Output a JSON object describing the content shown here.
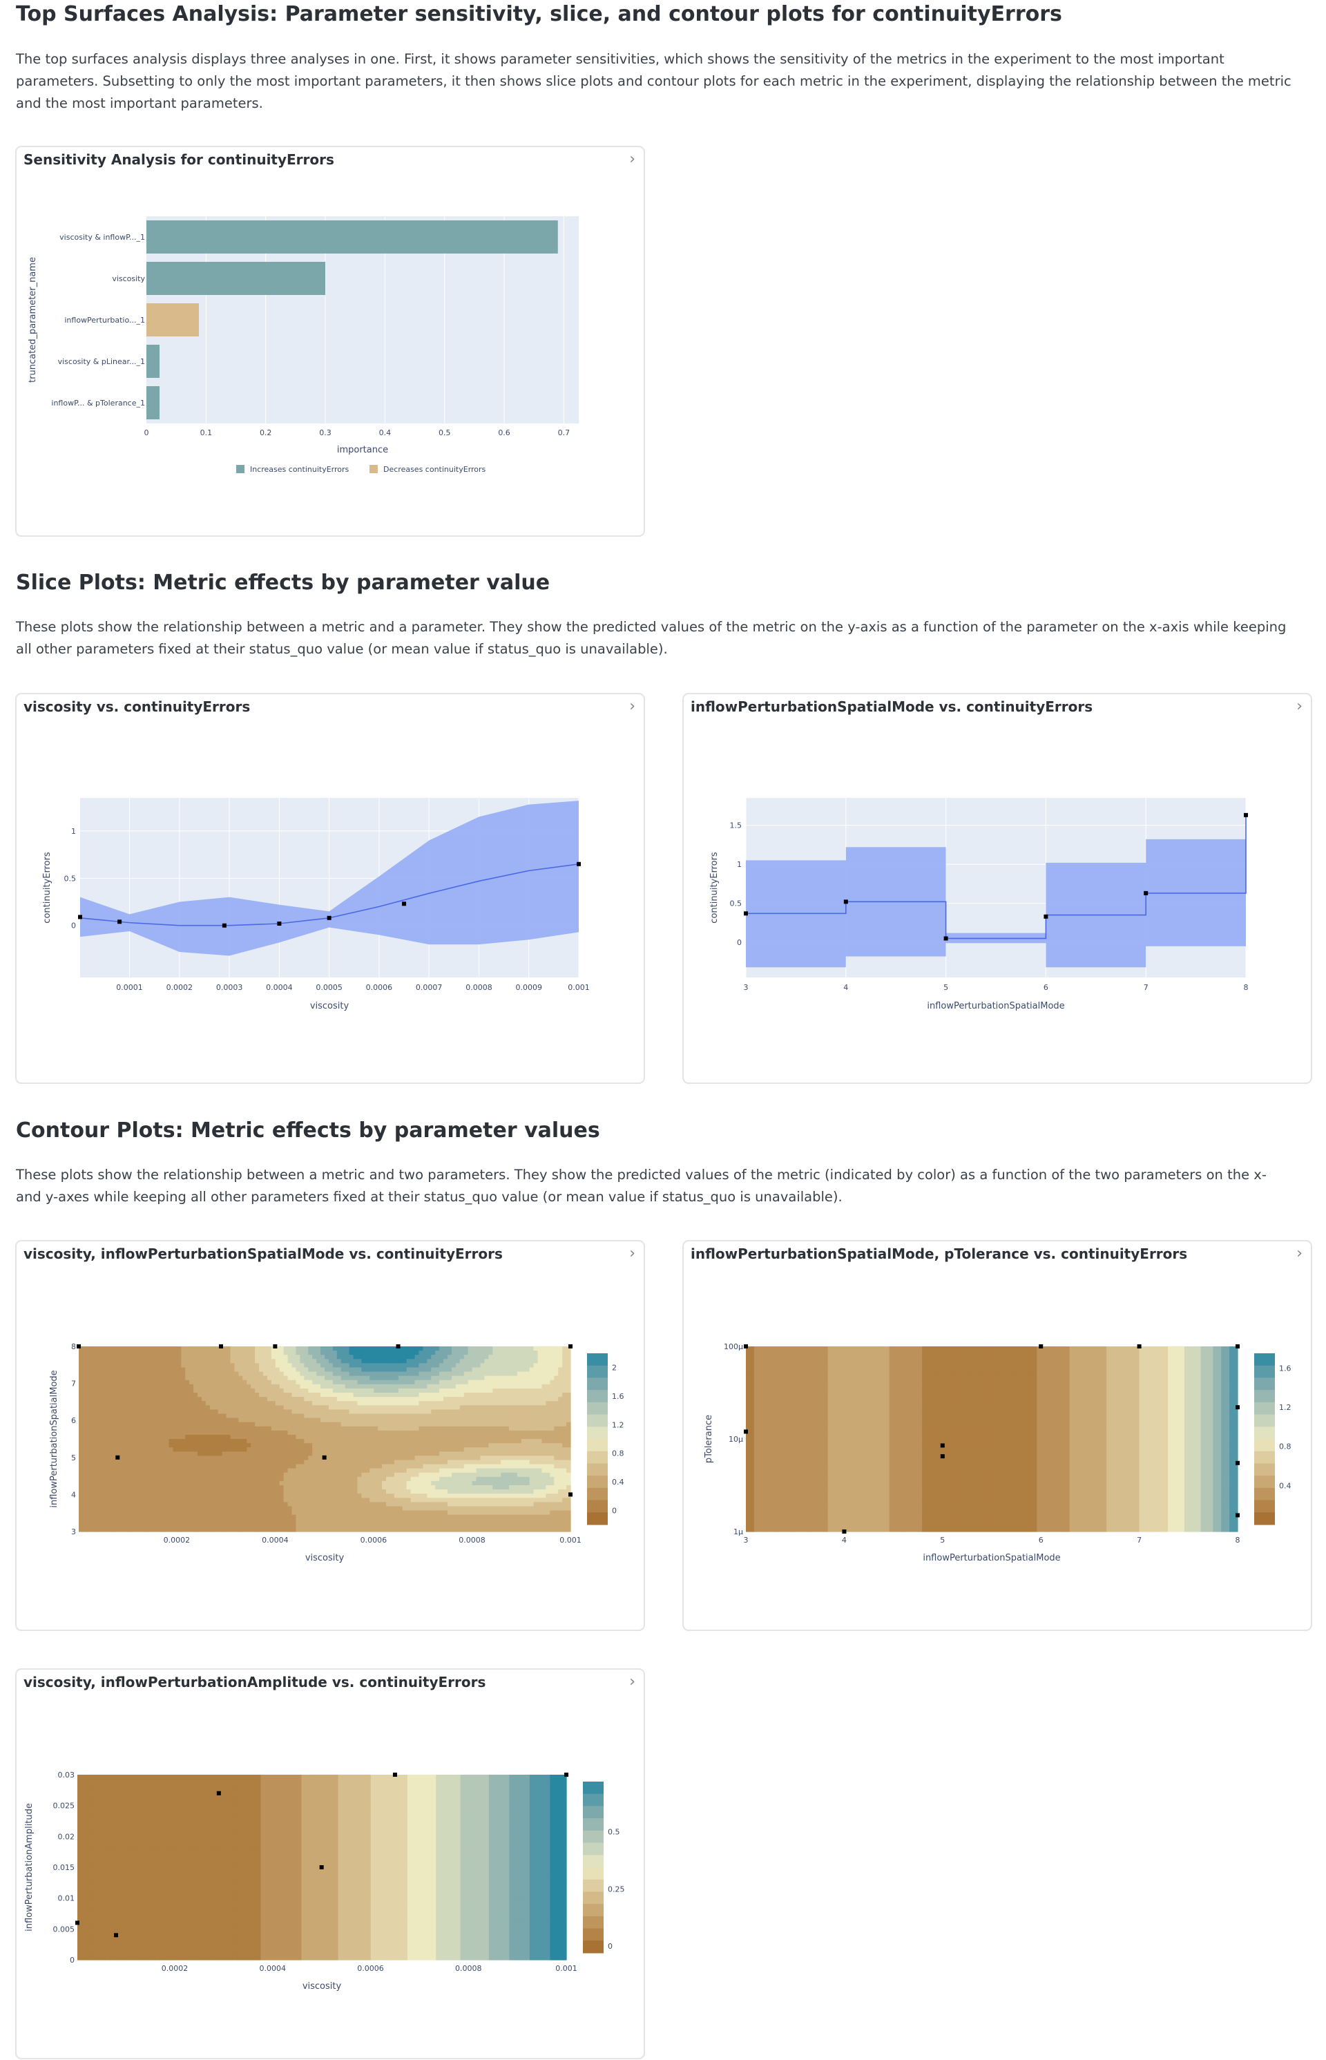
{
  "sections": {
    "top": {
      "title": "Top Surfaces Analysis: Parameter sensitivity, slice, and contour plots for continuityErrors",
      "description": "The top surfaces analysis displays three analyses in one. First, it shows parameter sensitivities, which shows the sensitivity of the metrics in the experiment to the most important parameters. Subsetting to only the most important parameters, it then shows slice plots and contour plots for each metric in the experiment, displaying the relationship between the metric and the most important parameters."
    },
    "slice": {
      "title": "Slice Plots: Metric effects by parameter value",
      "description": "These plots show the relationship between a metric and a parameter. They show the predicted values of the metric on the y-axis as a function of the parameter on the x-axis while keeping all other parameters fixed at their status_quo value (or mean value if status_quo is unavailable)."
    },
    "contour": {
      "title": "Contour Plots: Metric effects by parameter values",
      "description": "These plots show the relationship between a metric and two parameters. They show the predicted values of the metric (indicated by color) as a function of the two parameters on the x- and y-axes while keeping all other parameters fixed at their status_quo value (or mean value if status_quo is unavailable)."
    }
  },
  "icons": {
    "expand": "chevron-right-icon"
  },
  "colors": {
    "increase": "#7ba7ab",
    "decrease": "#d9bb8b",
    "plot_bg": "#e5ecf6",
    "band": "#9ab0f6",
    "line": "#4a68e6",
    "contour_scale": [
      "#a16928",
      "#bd925a",
      "#d6bd8d",
      "#edeac2",
      "#b5c8b8",
      "#79a7ac",
      "#2887a1"
    ]
  },
  "cards": {
    "sensitivity": {
      "title": "Sensitivity Analysis for continuityErrors"
    },
    "slice_viscosity": {
      "title": "viscosity vs. continuityErrors"
    },
    "slice_inflow": {
      "title": "inflowPerturbationSpatialMode vs. continuityErrors"
    },
    "contour1": {
      "title": "viscosity, inflowPerturbationSpatialMode vs. continuityErrors"
    },
    "contour2": {
      "title": "inflowPerturbationSpatialMode, pTolerance vs. continuityErrors"
    },
    "contour3": {
      "title": "viscosity, inflowPerturbationAmplitude vs. continuityErrors"
    }
  },
  "chart_data": [
    {
      "id": "sensitivity",
      "type": "bar",
      "orientation": "horizontal",
      "categories": [
        "viscosity & inflowP..._1",
        "viscosity",
        "inflowPerturbatio..._1",
        "viscosity & pLinear..._1",
        "inflowP... & pTolerance_1"
      ],
      "values": [
        0.69,
        0.3,
        0.088,
        0.022,
        0.022
      ],
      "direction": [
        "increase",
        "increase",
        "decrease",
        "increase",
        "increase"
      ],
      "xlabel": "importance",
      "ylabel": "truncated_parameter_name",
      "xlim": [
        0,
        0.725
      ],
      "xticks": [
        0,
        0.1,
        0.2,
        0.3,
        0.4,
        0.5,
        0.6,
        0.7
      ],
      "xtick_labels": [
        "0",
        "0.1",
        "0.2",
        "0.3",
        "0.4",
        "0.5",
        "0.6",
        "0.7"
      ],
      "legend": [
        "Increases continuityErrors",
        "Decreases continuityErrors"
      ],
      "legend_position": "bottom"
    },
    {
      "id": "slice_viscosity",
      "type": "line",
      "xlabel": "viscosity",
      "ylabel": "continuityErrors",
      "xlim": [
        1e-06,
        0.001
      ],
      "ylim": [
        -0.55,
        1.35
      ],
      "xticks": [
        0.0001,
        0.0002,
        0.0003,
        0.0004,
        0.0005,
        0.0006,
        0.0007,
        0.0008,
        0.0009,
        0.001
      ],
      "xtick_labels": [
        "0.0001",
        "0.0002",
        "0.0003",
        "0.0004",
        "0.0005",
        "0.0006",
        "0.0007",
        "0.0008",
        "0.0009",
        "0.001"
      ],
      "yticks": [
        0,
        0.5,
        1
      ],
      "ytick_labels": [
        "0",
        "0.5",
        "1"
      ],
      "x": [
        1e-06,
        0.0001,
        0.0002,
        0.0003,
        0.0004,
        0.0005,
        0.0006,
        0.0007,
        0.0008,
        0.0009,
        0.001
      ],
      "mean": [
        0.08,
        0.03,
        0.0,
        0.0,
        0.02,
        0.08,
        0.2,
        0.34,
        0.47,
        0.58,
        0.65
      ],
      "upper": [
        0.3,
        0.12,
        0.25,
        0.3,
        0.22,
        0.15,
        0.52,
        0.9,
        1.15,
        1.28,
        1.32
      ],
      "lower": [
        -0.12,
        -0.06,
        -0.28,
        -0.32,
        -0.18,
        -0.02,
        -0.1,
        -0.2,
        -0.2,
        -0.15,
        -0.07
      ],
      "observations": {
        "x": [
          1e-06,
          8e-05,
          0.00029,
          0.0004,
          0.0005,
          0.00065,
          0.001
        ],
        "y": [
          0.09,
          0.04,
          0.0,
          0.02,
          0.08,
          0.23,
          0.65
        ]
      }
    },
    {
      "id": "slice_inflow",
      "type": "line",
      "xlabel": "inflowPerturbationSpatialMode",
      "ylabel": "continuityErrors",
      "xlim": [
        3,
        8
      ],
      "ylim": [
        -0.45,
        1.85
      ],
      "xticks": [
        3,
        4,
        5,
        6,
        7,
        8
      ],
      "xtick_labels": [
        "3",
        "4",
        "5",
        "6",
        "7",
        "8"
      ],
      "yticks": [
        0,
        0.5,
        1,
        1.5
      ],
      "ytick_labels": [
        "0",
        "0.5",
        "1",
        "1.5"
      ],
      "x": [
        3,
        4,
        5,
        6,
        7,
        8
      ],
      "mean": [
        0.37,
        0.52,
        0.05,
        0.35,
        0.63,
        1.63
      ],
      "upper": [
        1.05,
        1.22,
        0.12,
        1.02,
        1.32,
        1.63
      ],
      "lower": [
        -0.32,
        -0.18,
        -0.01,
        -0.32,
        -0.05,
        1.63
      ],
      "observations": {
        "x": [
          3,
          4,
          5,
          6,
          7,
          8
        ],
        "y": [
          0.37,
          0.52,
          0.05,
          0.33,
          0.63,
          1.63
        ]
      }
    },
    {
      "id": "contour1",
      "type": "heatmap",
      "xlabel": "viscosity",
      "ylabel": "inflowPerturbationSpatialMode",
      "xlim": [
        1e-06,
        0.001
      ],
      "ylim": [
        3,
        8
      ],
      "xticks": [
        0.0002,
        0.0004,
        0.0006,
        0.0008,
        0.001
      ],
      "xtick_labels": [
        "0.0002",
        "0.0004",
        "0.0006",
        "0.0008",
        "0.001"
      ],
      "yticks": [
        3,
        4,
        5,
        6,
        7,
        8
      ],
      "ytick_labels": [
        "3",
        "4",
        "5",
        "6",
        "7",
        "8"
      ],
      "colorbar": {
        "min": -0.2,
        "max": 2.2,
        "ticks": [
          0,
          0.4,
          0.8,
          1.2,
          1.6,
          2
        ],
        "tick_labels": [
          "0",
          "0.4",
          "0.8",
          "1.2",
          "1.6",
          "2"
        ]
      },
      "observations": {
        "x": [
          1e-06,
          8e-05,
          0.00029,
          0.0004,
          0.0005,
          0.00065,
          0.001,
          0.001
        ],
        "y": [
          8,
          5,
          8,
          8,
          5,
          8,
          8,
          4
        ]
      }
    },
    {
      "id": "contour2",
      "type": "heatmap",
      "xlabel": "inflowPerturbationSpatialMode",
      "ylabel": "pTolerance",
      "yscale": "log",
      "xlim": [
        3,
        8
      ],
      "ylim": [
        1e-06,
        0.0001
      ],
      "xticks": [
        3,
        4,
        5,
        6,
        7,
        8
      ],
      "xtick_labels": [
        "3",
        "4",
        "5",
        "6",
        "7",
        "8"
      ],
      "yticks": [
        1e-06,
        1e-05,
        0.0001
      ],
      "ytick_labels": [
        "1μ",
        "10μ",
        "100μ"
      ],
      "colorbar": {
        "min": 0.0,
        "max": 1.75,
        "ticks": [
          0.4,
          0.8,
          1.2,
          1.6
        ],
        "tick_labels": [
          "0.4",
          "0.8",
          "1.2",
          "1.6"
        ]
      },
      "observations": {
        "x": [
          3,
          3,
          4,
          5,
          5,
          6,
          7,
          8,
          8,
          8,
          8
        ],
        "y": [
          0.0001,
          1.2e-05,
          1e-06,
          6.5e-06,
          8.5e-06,
          0.0001,
          0.0001,
          0.0001,
          2.2e-05,
          5.5e-06,
          1.5e-06
        ]
      }
    },
    {
      "id": "contour3",
      "type": "heatmap",
      "xlabel": "viscosity",
      "ylabel": "inflowPerturbationAmplitude",
      "xlim": [
        1e-06,
        0.001
      ],
      "ylim": [
        0,
        0.03
      ],
      "xticks": [
        0.0002,
        0.0004,
        0.0006,
        0.0008,
        0.001
      ],
      "xtick_labels": [
        "0.0002",
        "0.0004",
        "0.0006",
        "0.0008",
        "0.001"
      ],
      "yticks": [
        0,
        0.005,
        0.01,
        0.015,
        0.02,
        0.025,
        0.03
      ],
      "ytick_labels": [
        "0",
        "0.005",
        "0.01",
        "0.015",
        "0.02",
        "0.025",
        "0.03"
      ],
      "colorbar": {
        "min": -0.03,
        "max": 0.72,
        "ticks": [
          0,
          0.25,
          0.5
        ],
        "tick_labels": [
          "0",
          "0.25",
          "0.5"
        ]
      },
      "observations": {
        "x": [
          1e-06,
          8e-05,
          0.00029,
          0.0005,
          0.00065,
          0.001
        ],
        "y": [
          0.006,
          0.004,
          0.027,
          0.015,
          0.03,
          0.03
        ]
      }
    }
  ]
}
